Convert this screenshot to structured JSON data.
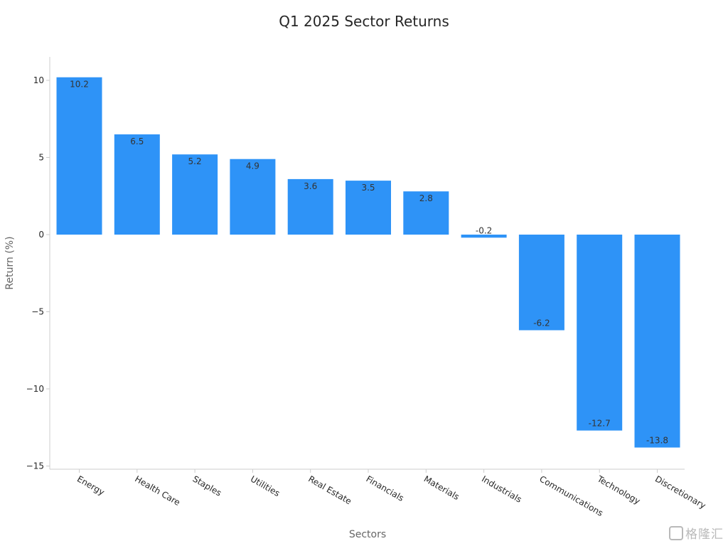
{
  "chart_data": {
    "type": "bar",
    "title": "Q1 2025 Sector Returns",
    "xlabel": "Sectors",
    "ylabel": "Return (%)",
    "ylim": [
      -15,
      11.5
    ],
    "yticks": [
      10,
      5,
      0,
      -5,
      -10,
      -15
    ],
    "ytick_labels": [
      "10",
      "5",
      "0",
      "−5",
      "−10",
      "−15"
    ],
    "categories": [
      "Energy",
      "Health Care",
      "Staples",
      "Utilities",
      "Real Estate",
      "Financials",
      "Materials",
      "Industrials",
      "Communications",
      "Technology",
      "Discretionary"
    ],
    "values": [
      10.2,
      6.5,
      5.2,
      4.9,
      3.6,
      3.5,
      2.8,
      -0.2,
      -6.2,
      -12.7,
      -13.8
    ],
    "data_labels": [
      "10.2",
      "6.5",
      "5.2",
      "4.9",
      "3.6",
      "3.5",
      "2.8",
      "-0.2",
      "-6.2",
      "-12.7",
      "-13.8"
    ],
    "bar_color": "#2E93F7",
    "grid": false,
    "legend": "none"
  },
  "watermark": {
    "text": "格隆汇"
  }
}
